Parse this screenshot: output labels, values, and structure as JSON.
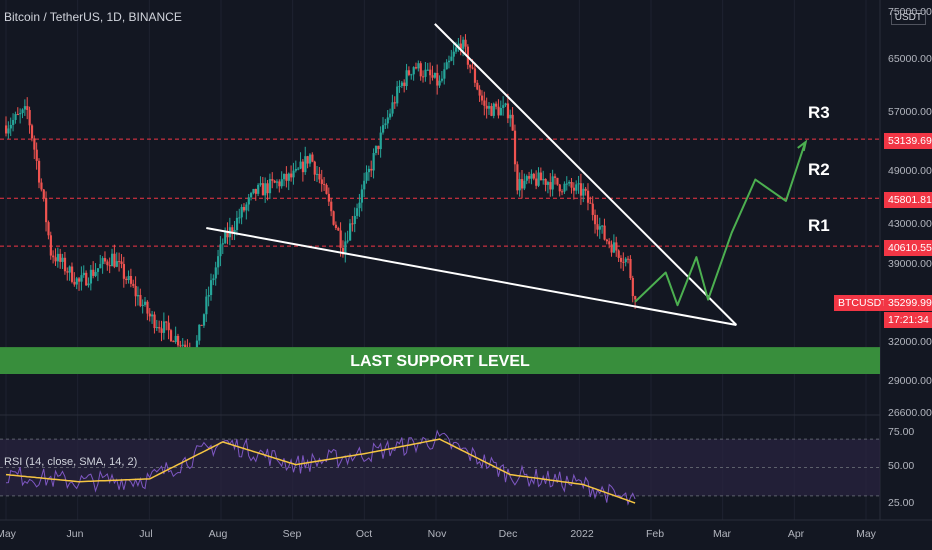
{
  "header": {
    "title": "Bitcoin / TetherUS, 1D, BINANCE",
    "currency": "USDT"
  },
  "price_axis": {
    "ticks": [
      "75000.00",
      "65000.00",
      "57000.00",
      "49000.00",
      "43000.00",
      "39000.00",
      "32000.00",
      "29000.00",
      "26600.00"
    ]
  },
  "levels": [
    {
      "name": "R3",
      "price": 53139.69,
      "label": "53139.69"
    },
    {
      "name": "R2",
      "price": 45801.81,
      "label": "45801.81"
    },
    {
      "name": "R1",
      "price": 40610.55,
      "label": "40610.55"
    }
  ],
  "last_price": {
    "symbol": "BTCUSDT",
    "price": "35299.99",
    "countdown": "17:21:34"
  },
  "support_zone": {
    "label": "LAST SUPPORT LEVEL",
    "low": 29600,
    "high": 31500,
    "color": "#388e3c"
  },
  "rsi": {
    "label": "RSI (14, close, SMA, 14, 2)",
    "ticks": [
      "75.00",
      "50.00",
      "25.00"
    ],
    "upper": 70,
    "lower": 30
  },
  "time_axis": {
    "labels": [
      "May",
      "Jun",
      "Jul",
      "Aug",
      "Sep",
      "Oct",
      "Nov",
      "Dec",
      "2022",
      "Feb",
      "Mar",
      "Apr",
      "May"
    ]
  },
  "colors": {
    "bg": "#131722",
    "up": "#26a69a",
    "down": "#ef5350",
    "level": "#f23645",
    "projection": "#4caf50",
    "trend": "#ffffff",
    "rsi_line": "#7e57c2",
    "rsi_ma": "#f5c542"
  },
  "chart_data": {
    "type": "line",
    "title": "Bitcoin / TetherUS, 1D, BINANCE",
    "xlabel": "",
    "ylabel": "",
    "ylim": [
      26000,
      76000
    ],
    "x": [
      "2021-05-01",
      "2021-05-10",
      "2021-05-20",
      "2021-06-01",
      "2021-06-15",
      "2021-07-01",
      "2021-07-20",
      "2021-08-01",
      "2021-08-15",
      "2021-09-01",
      "2021-09-07",
      "2021-09-21",
      "2021-10-01",
      "2021-10-15",
      "2021-10-21",
      "2021-11-01",
      "2021-11-10",
      "2021-11-20",
      "2021-12-01",
      "2021-12-04",
      "2021-12-15",
      "2022-01-01",
      "2022-01-10",
      "2022-01-20",
      "2022-01-23"
    ],
    "series": [
      {
        "values": [
          55000,
          57000,
          40000,
          37000,
          39500,
          34000,
          31000,
          41000,
          46500,
          48500,
          51000,
          40500,
          48000,
          60500,
          64000,
          61000,
          68000,
          57500,
          57000,
          47500,
          48000,
          46500,
          41500,
          39000,
          35300
        ]
      }
    ],
    "resistance_levels": [
      53139.69,
      45801.81,
      40610.55
    ],
    "support_zone": [
      29600,
      31500
    ],
    "rsi": {
      "x": [
        "2021-05-01",
        "2021-06-01",
        "2021-07-01",
        "2021-08-01",
        "2021-09-01",
        "2021-10-01",
        "2021-11-01",
        "2021-12-01",
        "2022-01-01",
        "2022-01-23"
      ],
      "values": [
        45,
        40,
        42,
        68,
        52,
        60,
        70,
        45,
        38,
        25
      ]
    }
  }
}
